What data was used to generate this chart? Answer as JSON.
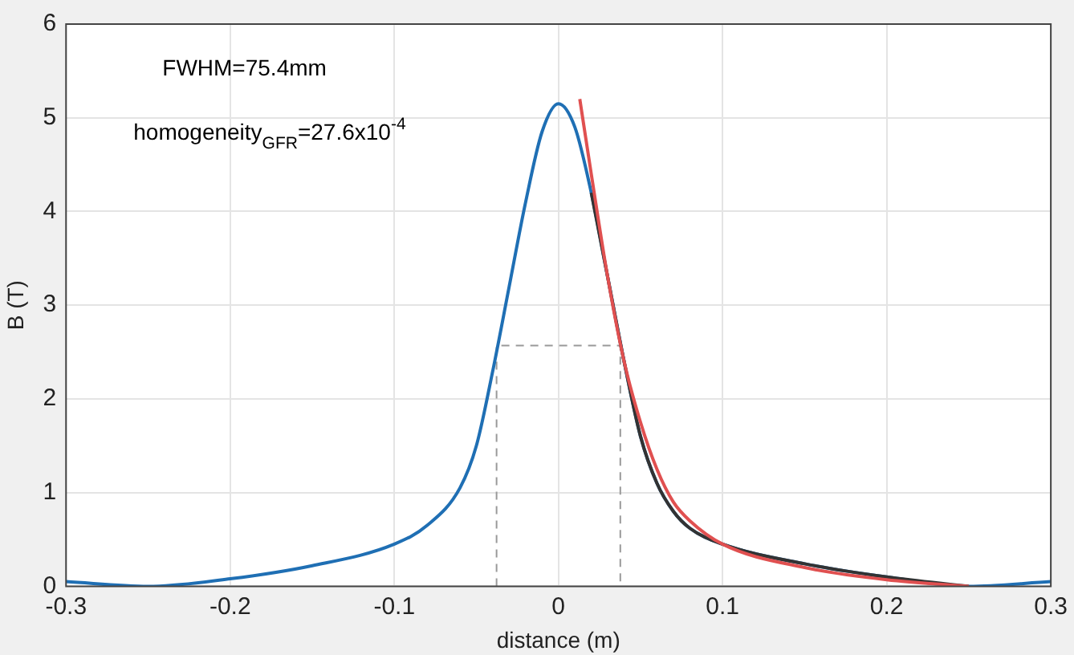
{
  "chart_data": {
    "type": "line",
    "xlabel": "distance (m)",
    "ylabel": "B (T)",
    "annotations": [
      "FWHM=75.4mm",
      "homogeneity$_{GFR}$=27.6x10$^{-4}$"
    ],
    "xlim": [
      -0.3,
      0.3
    ],
    "xticks": [
      -0.3,
      -0.2,
      -0.1,
      0,
      0.1,
      0.2,
      0.3
    ],
    "ylim": [
      0,
      6
    ],
    "yticks": [
      0,
      1,
      2,
      3,
      4,
      5,
      6
    ],
    "grid": true,
    "legend": false,
    "marker": "none",
    "series": [
      {
        "color": "#999999",
        "line_style": "dashed",
        "x": [
          -0.0377,
          -0.0377,
          0.0377,
          0.0377
        ],
        "values": [
          0,
          2.57,
          2.57,
          0
        ]
      },
      {
        "color": "#1f6fb4",
        "line_style": "solid",
        "x": [
          -0.3,
          -0.25,
          -0.2,
          -0.15,
          -0.1,
          -0.08,
          -0.06,
          -0.05,
          -0.04,
          -0.03,
          -0.02,
          -0.01,
          0,
          0.01,
          0.02,
          0.03,
          0.04,
          0.05,
          0.06,
          0.07,
          0.08,
          0.1,
          0.15,
          0.2,
          0.25,
          0.3
        ],
        "values": [
          0.05,
          0,
          0.08,
          0.22,
          0.45,
          0.65,
          1.05,
          1.5,
          2.3,
          3.2,
          4.1,
          4.85,
          5.15,
          4.9,
          4.2,
          3.3,
          2.4,
          1.6,
          1.1,
          0.8,
          0.62,
          0.45,
          0.24,
          0.1,
          0,
          0.05
        ]
      },
      {
        "color": "#333333",
        "line_style": "solid",
        "x": [
          0.02,
          0.03,
          0.04,
          0.05,
          0.06,
          0.07,
          0.08,
          0.1,
          0.15,
          0.2,
          0.25
        ],
        "values": [
          4.2,
          3.3,
          2.4,
          1.6,
          1.1,
          0.8,
          0.62,
          0.45,
          0.24,
          0.1,
          0
        ]
      },
      {
        "color": "#e05050",
        "line_style": "solid",
        "x": [
          0.013,
          0.02,
          0.03,
          0.04,
          0.05,
          0.06,
          0.07,
          0.08,
          0.1,
          0.15,
          0.2,
          0.25
        ],
        "values": [
          5.2,
          4.4,
          3.3,
          2.4,
          1.75,
          1.25,
          0.9,
          0.7,
          0.45,
          0.2,
          0.07,
          0
        ]
      }
    ]
  }
}
